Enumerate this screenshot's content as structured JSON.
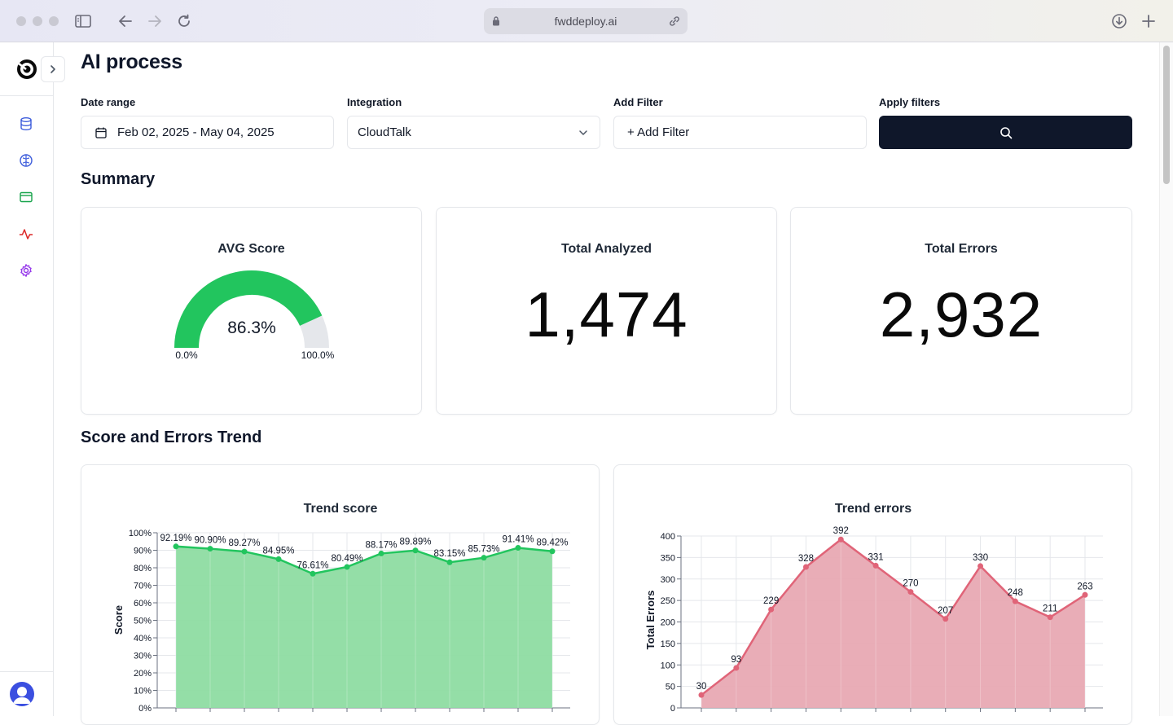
{
  "browser": {
    "url": "fwddeploy.ai"
  },
  "page": {
    "title": "AI process"
  },
  "filters": {
    "date_range": {
      "label": "Date range",
      "value": "Feb 02, 2025 - May 04, 2025"
    },
    "integration": {
      "label": "Integration",
      "value": "CloudTalk"
    },
    "add_filter": {
      "label": "Add Filter",
      "value": "+ Add Filter"
    },
    "apply": {
      "label": "Apply filters"
    }
  },
  "summary": {
    "title": "Summary",
    "avg_score": {
      "title": "AVG Score",
      "value": 86.3,
      "display": "86.3%",
      "min_label": "0.0%",
      "max_label": "100.0%",
      "fill_color": "#22c55e",
      "track_color": "#e5e7eb"
    },
    "total_analyzed": {
      "title": "Total Analyzed",
      "value": "1,474"
    },
    "total_errors": {
      "title": "Total Errors",
      "value": "2,932"
    }
  },
  "trend": {
    "title": "Score and Errors Trend"
  },
  "chart_data": [
    {
      "type": "area",
      "title": "Trend score",
      "ylabel": "Score",
      "xlabel": "",
      "ylim": [
        0,
        100
      ],
      "y_ticks": [
        "0%",
        "10%",
        "20%",
        "30%",
        "40%",
        "50%",
        "60%",
        "70%",
        "80%",
        "90%",
        "100%"
      ],
      "series": [
        {
          "values": [
            92.19,
            90.9,
            89.27,
            84.95,
            76.61,
            80.49,
            88.17,
            89.89,
            83.15,
            85.73,
            91.41,
            89.42
          ],
          "labels": [
            "92.19%",
            "90.90%",
            "89.27%",
            "84.95%",
            "76.61%",
            "80.49%",
            "88.17%",
            "89.89%",
            "83.15%",
            "85.73%",
            "91.41%",
            "89.42%"
          ]
        }
      ],
      "color": "#22c55e",
      "fill": "#8edca2",
      "grid": true
    },
    {
      "type": "area",
      "title": "Trend errors",
      "ylabel": "Total Errors",
      "xlabel": "",
      "ylim": [
        0,
        400
      ],
      "y_ticks": [
        "0",
        "50",
        "100",
        "150",
        "200",
        "250",
        "300",
        "350",
        "400"
      ],
      "series": [
        {
          "values": [
            30,
            93,
            229,
            328,
            392,
            331,
            270,
            207,
            330,
            248,
            211,
            263
          ],
          "labels": [
            "30",
            "93",
            "229",
            "328",
            "392",
            "331",
            "270",
            "207",
            "330",
            "248",
            "211",
            "263"
          ]
        }
      ],
      "color": "#e06478",
      "fill": "#e8a9b3",
      "grid": true
    }
  ]
}
